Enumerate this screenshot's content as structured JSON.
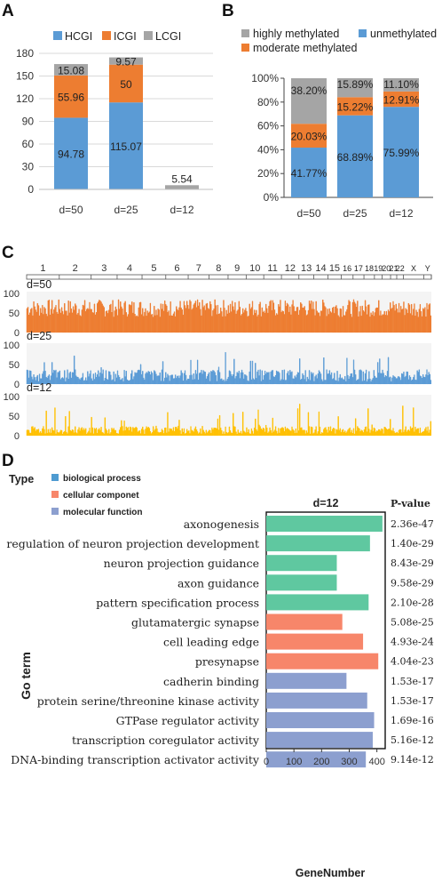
{
  "panels": {
    "A": "A",
    "B": "B",
    "C": "C",
    "D": "D"
  },
  "colors": {
    "hcgi": "#5b9bd5",
    "icgi": "#ed7d31",
    "lcgi": "#a5a5a5",
    "yellow": "#ffc000",
    "bio": "#5fc8a0",
    "cell": "#f7866a",
    "mol": "#8c9fcf",
    "bio_legend": "#4e9bd1",
    "cell_legend": "#f7866a",
    "mol_legend": "#8c9fcf"
  },
  "chart_data": [
    {
      "id": "A",
      "type": "bar",
      "stacked": true,
      "categories": [
        "d=50",
        "d=25",
        "d=12"
      ],
      "series": [
        {
          "name": "HCGI",
          "values": [
            94.78,
            115.07,
            0
          ]
        },
        {
          "name": "ICGI",
          "values": [
            55.96,
            50,
            0
          ]
        },
        {
          "name": "LCGI",
          "values": [
            15.08,
            9.57,
            5.54
          ]
        }
      ],
      "labels": [
        [
          "94.78",
          "115.07",
          ""
        ],
        [
          "55.96",
          "50",
          ""
        ],
        [
          "15.08",
          "9.57",
          "5.54"
        ]
      ],
      "yticks": [
        "0",
        "30",
        "60",
        "90",
        "120",
        "150",
        "180"
      ],
      "ylim": [
        0,
        180
      ],
      "legend": "top"
    },
    {
      "id": "B",
      "type": "bar",
      "stacked": true,
      "percent": true,
      "categories": [
        "d=50",
        "d=25",
        "d=12"
      ],
      "series": [
        {
          "name": "unmethylated",
          "values": [
            41.77,
            68.89,
            75.99
          ]
        },
        {
          "name": "moderate methylated",
          "values": [
            20.03,
            15.22,
            12.91
          ]
        },
        {
          "name": "highly methylated",
          "values": [
            38.2,
            15.89,
            11.1
          ]
        }
      ],
      "labels": [
        [
          "41.77%",
          "68.89%",
          "75.99%"
        ],
        [
          "20.03%",
          "15.22%",
          "12.91%"
        ],
        [
          "38.20%",
          "15.89%",
          "11.10%"
        ]
      ],
      "yticks": [
        "0%",
        "20%",
        "40%",
        "60%",
        "80%",
        "100%"
      ],
      "ylim": [
        0,
        100
      ],
      "legend": "top"
    },
    {
      "id": "C",
      "type": "bar",
      "chromosomes": [
        "1",
        "2",
        "3",
        "4",
        "5",
        "6",
        "7",
        "8",
        "9",
        "10",
        "11",
        "12",
        "13",
        "14",
        "15",
        "16",
        "17",
        "18",
        "19",
        "20",
        "21",
        "22",
        "X",
        "Y"
      ],
      "tracks": [
        {
          "name": "d=50",
          "yticks": [
            "0",
            "50",
            "100"
          ],
          "ylim": [
            0,
            100
          ],
          "mean_level": 0.62
        },
        {
          "name": "d=25",
          "yticks": [
            "0",
            "50",
            "100"
          ],
          "ylim": [
            0,
            100
          ],
          "mean_level": 0.22
        },
        {
          "name": "d=12",
          "yticks": [
            "0",
            "50",
            "100"
          ],
          "ylim": [
            0,
            100
          ],
          "mean_level": 0.14
        }
      ]
    },
    {
      "id": "D",
      "type": "bar",
      "orientation": "horizontal",
      "title": "d=12",
      "ylabel": "Go term",
      "xlabel": "GeneNumber",
      "legend_title": "Type",
      "legend": [
        {
          "name": "biological process",
          "type": "bio"
        },
        {
          "name": "cellular componet",
          "type": "cell"
        },
        {
          "name": "molecular function",
          "type": "mol"
        }
      ],
      "pvalue_header": "P-value",
      "xticks": [
        "0",
        "100",
        "200",
        "300",
        "400"
      ],
      "xlim": [
        0,
        430
      ],
      "terms": [
        {
          "name": "axonogenesis",
          "value": 420,
          "type": "bio",
          "pvalue": "2.36e-47"
        },
        {
          "name": "regulation of neuron projection development",
          "value": 375,
          "type": "bio",
          "pvalue": "1.40e-29"
        },
        {
          "name": "neuron projection guidance",
          "value": 255,
          "type": "bio",
          "pvalue": "8.43e-29"
        },
        {
          "name": "axon guidance",
          "value": 255,
          "type": "bio",
          "pvalue": "9.58e-29"
        },
        {
          "name": "pattern specification process",
          "value": 370,
          "type": "bio",
          "pvalue": "2.10e-28"
        },
        {
          "name": "glutamatergic synapse",
          "value": 275,
          "type": "cell",
          "pvalue": "5.08e-25"
        },
        {
          "name": "cell leading edge",
          "value": 350,
          "type": "cell",
          "pvalue": "4.93e-24"
        },
        {
          "name": "presynapse",
          "value": 405,
          "type": "cell",
          "pvalue": "4.04e-23"
        },
        {
          "name": "cadherin binding",
          "value": 290,
          "type": "mol",
          "pvalue": "1.53e-17"
        },
        {
          "name": "protein serine/threonine kinase activity",
          "value": 365,
          "type": "mol",
          "pvalue": "1.53e-17"
        },
        {
          "name": "GTPase regulator activity",
          "value": 390,
          "type": "mol",
          "pvalue": "1.69e-16"
        },
        {
          "name": "transcription coregulator activity",
          "value": 385,
          "type": "mol",
          "pvalue": "5.16e-12"
        },
        {
          "name": "DNA-binding transcription activator activity",
          "value": 360,
          "type": "mol",
          "pvalue": "9.14e-12"
        }
      ]
    }
  ]
}
